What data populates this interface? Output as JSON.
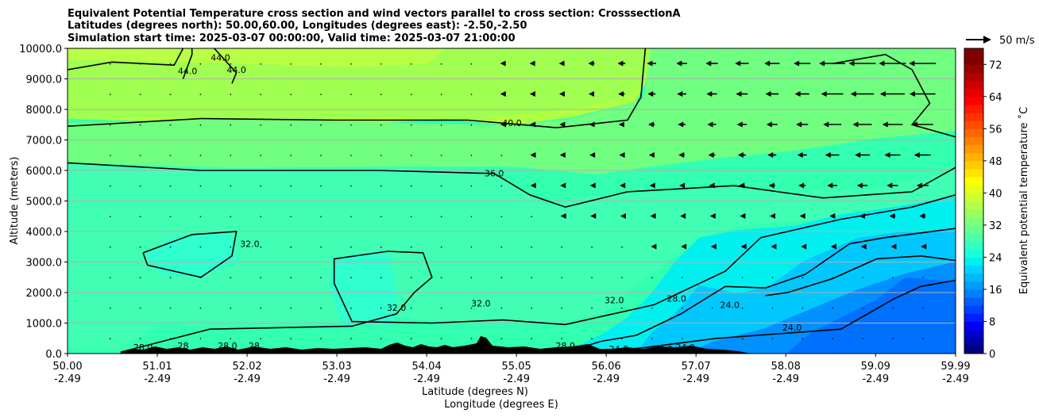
{
  "chart_data": {
    "type": "heatmap",
    "title_lines": [
      "Equivalent Potential Temperature cross section and wind vectors parallel to cross section: CrosssectionA",
      "Latitudes (degrees north): 50.00,60.00, Longitudes (degrees east): -2.50,-2.50",
      "Simulation start time: 2025-03-07 00:00:00, Valid time: 2025-03-07 21:00:00"
    ],
    "ylabel": "Altitude (meters)",
    "xlabel_lines": [
      "Latitude (degrees N)",
      "Longitude (degrees E)"
    ],
    "x_ticks": [
      {
        "lat": "50.00",
        "lon": "-2.49",
        "v": 50.0
      },
      {
        "lat": "51.01",
        "lon": "-2.49",
        "v": 51.01
      },
      {
        "lat": "52.02",
        "lon": "-2.49",
        "v": 52.02
      },
      {
        "lat": "53.03",
        "lon": "-2.49",
        "v": 53.03
      },
      {
        "lat": "54.04",
        "lon": "-2.49",
        "v": 54.04
      },
      {
        "lat": "55.05",
        "lon": "-2.49",
        "v": 55.05
      },
      {
        "lat": "56.06",
        "lon": "-2.49",
        "v": 56.06
      },
      {
        "lat": "57.07",
        "lon": "-2.49",
        "v": 57.07
      },
      {
        "lat": "58.08",
        "lon": "-2.49",
        "v": 58.08
      },
      {
        "lat": "59.09",
        "lon": "-2.49",
        "v": 59.09
      },
      {
        "lat": "59.99",
        "lon": "-2.49",
        "v": 59.99
      }
    ],
    "y_ticks": [
      "0.0",
      "1000.0",
      "2000.0",
      "3000.0",
      "4000.0",
      "5000.0",
      "6000.0",
      "7000.0",
      "8000.0",
      "9000.0",
      "10000.0"
    ],
    "xlim": [
      50.0,
      59.99
    ],
    "ylim": [
      0,
      10000
    ],
    "grid": "horizontal",
    "colorbar": {
      "label": "Equivalent potential temperature ˚C",
      "ticks": [
        "0",
        "8",
        "16",
        "24",
        "32",
        "40",
        "48",
        "56",
        "64",
        "72"
      ],
      "range": [
        0,
        76
      ]
    },
    "quiver_key": {
      "label": "50 m/s"
    },
    "contours": [
      {
        "level": 44,
        "label": "44.0",
        "points": [
          [
            50.0,
            9300
          ],
          [
            50.5,
            9550
          ],
          [
            51.2,
            9450
          ],
          [
            51.3,
            10000
          ]
        ]
      },
      {
        "level": 44,
        "label": "44.0",
        "points": [
          [
            51.3,
            9000
          ],
          [
            51.4,
            9800
          ],
          [
            51.4,
            10000
          ]
        ]
      },
      {
        "level": 44,
        "label": "44.0",
        "points": [
          [
            51.65,
            10000
          ],
          [
            51.9,
            9200
          ],
          [
            51.85,
            8850
          ]
        ]
      },
      {
        "level": 40,
        "label": "40.0",
        "points": [
          [
            50.0,
            7450
          ],
          [
            51.5,
            7700
          ],
          [
            53.0,
            7650
          ],
          [
            54.5,
            7650
          ],
          [
            55.5,
            7400
          ],
          [
            56.3,
            7650
          ],
          [
            56.45,
            8400
          ],
          [
            56.5,
            10000
          ]
        ]
      },
      {
        "level": 40,
        "label": "40.0",
        "points": [
          [
            58.6,
            9500
          ],
          [
            59.2,
            9800
          ],
          [
            59.5,
            9300
          ],
          [
            59.7,
            8200
          ],
          [
            59.5,
            7500
          ],
          [
            59.99,
            7100
          ]
        ]
      },
      {
        "level": 36,
        "label": "36.0",
        "points": [
          [
            50.0,
            6250
          ],
          [
            51.5,
            6000
          ],
          [
            53.5,
            6000
          ],
          [
            54.8,
            5900
          ],
          [
            55.2,
            5200
          ],
          [
            55.6,
            4800
          ],
          [
            56.3,
            5300
          ],
          [
            57.5,
            5500
          ],
          [
            58.5,
            5100
          ],
          [
            59.5,
            5300
          ],
          [
            59.99,
            6100
          ]
        ]
      },
      {
        "level": 32,
        "label": "32.0",
        "points": [
          [
            50.85,
            3300
          ],
          [
            51.4,
            3900
          ],
          [
            51.9,
            4000
          ],
          [
            51.85,
            3200
          ],
          [
            51.5,
            2500
          ],
          [
            50.9,
            2900
          ],
          [
            50.85,
            3300
          ]
        ]
      },
      {
        "level": 32,
        "label": "32.0",
        "points": [
          [
            50.6,
            50
          ],
          [
            51.6,
            800
          ],
          [
            53.2,
            900
          ],
          [
            53.7,
            1300
          ],
          [
            53.9,
            2000
          ],
          [
            54.1,
            2500
          ],
          [
            54.0,
            3300
          ],
          [
            53.6,
            3350
          ],
          [
            53.0,
            3100
          ],
          [
            53.0,
            2300
          ],
          [
            53.2,
            1050
          ],
          [
            54.1,
            1000
          ],
          [
            54.9,
            1100
          ],
          [
            55.6,
            950
          ],
          [
            56.6,
            1600
          ],
          [
            57.4,
            2700
          ],
          [
            57.8,
            3800
          ],
          [
            58.7,
            4400
          ],
          [
            59.5,
            4800
          ],
          [
            59.99,
            5200
          ]
        ]
      },
      {
        "level": 28,
        "label": "28.0",
        "points": [
          [
            55.6,
            50
          ],
          [
            56.0,
            400
          ],
          [
            56.4,
            600
          ],
          [
            56.9,
            1300
          ],
          [
            57.4,
            2200
          ],
          [
            57.85,
            2150
          ],
          [
            58.3,
            2600
          ],
          [
            58.8,
            3600
          ],
          [
            59.2,
            3800
          ],
          [
            59.99,
            4100
          ]
        ]
      },
      {
        "level": 24,
        "label": "24.0",
        "points": [
          [
            56.0,
            50
          ],
          [
            56.5,
            200
          ],
          [
            57.3,
            500
          ],
          [
            58.0,
            650
          ],
          [
            58.7,
            800
          ],
          [
            59.3,
            1800
          ],
          [
            59.6,
            2200
          ],
          [
            59.99,
            2400
          ]
        ]
      },
      {
        "level": 24,
        "label": "24.0",
        "points": [
          [
            57.85,
            1900
          ],
          [
            58.1,
            2000
          ],
          [
            58.6,
            2450
          ],
          [
            59.1,
            3100
          ],
          [
            59.6,
            3200
          ],
          [
            59.99,
            3050
          ]
        ]
      }
    ],
    "contour_labels": [
      {
        "text": "44.0",
        "x": 51.35,
        "y": 9150
      },
      {
        "text": "44.0",
        "x": 51.72,
        "y": 9600
      },
      {
        "text": "44.0",
        "x": 51.9,
        "y": 9200
      },
      {
        "text": "40.0",
        "x": 55.0,
        "y": 7450
      },
      {
        "text": "36.0",
        "x": 54.8,
        "y": 5800
      },
      {
        "text": "32.0",
        "x": 52.05,
        "y": 3500
      },
      {
        "text": "32.0",
        "x": 53.7,
        "y": 1400
      },
      {
        "text": "32.0",
        "x": 54.65,
        "y": 1550
      },
      {
        "text": "32.0",
        "x": 56.15,
        "y": 1650
      },
      {
        "text": "28.0",
        "x": 56.85,
        "y": 1700
      },
      {
        "text": "24.0",
        "x": 57.45,
        "y": 1500
      },
      {
        "text": "24.0",
        "x": 58.15,
        "y": 750
      },
      {
        "text": "24.0",
        "x": 56.2,
        "y": 50
      },
      {
        "text": "24.0",
        "x": 56.7,
        "y": 50
      },
      {
        "text": "24.0",
        "x": 56.95,
        "y": 100
      },
      {
        "text": "28.0",
        "x": 51.8,
        "y": 150
      },
      {
        "text": "28",
        "x": 52.1,
        "y": 150
      },
      {
        "text": "28.0",
        "x": 55.6,
        "y": 150
      },
      {
        "text": "28.0",
        "x": 50.85,
        "y": 100
      },
      {
        "text": "28",
        "x": 51.3,
        "y": 150
      }
    ]
  }
}
